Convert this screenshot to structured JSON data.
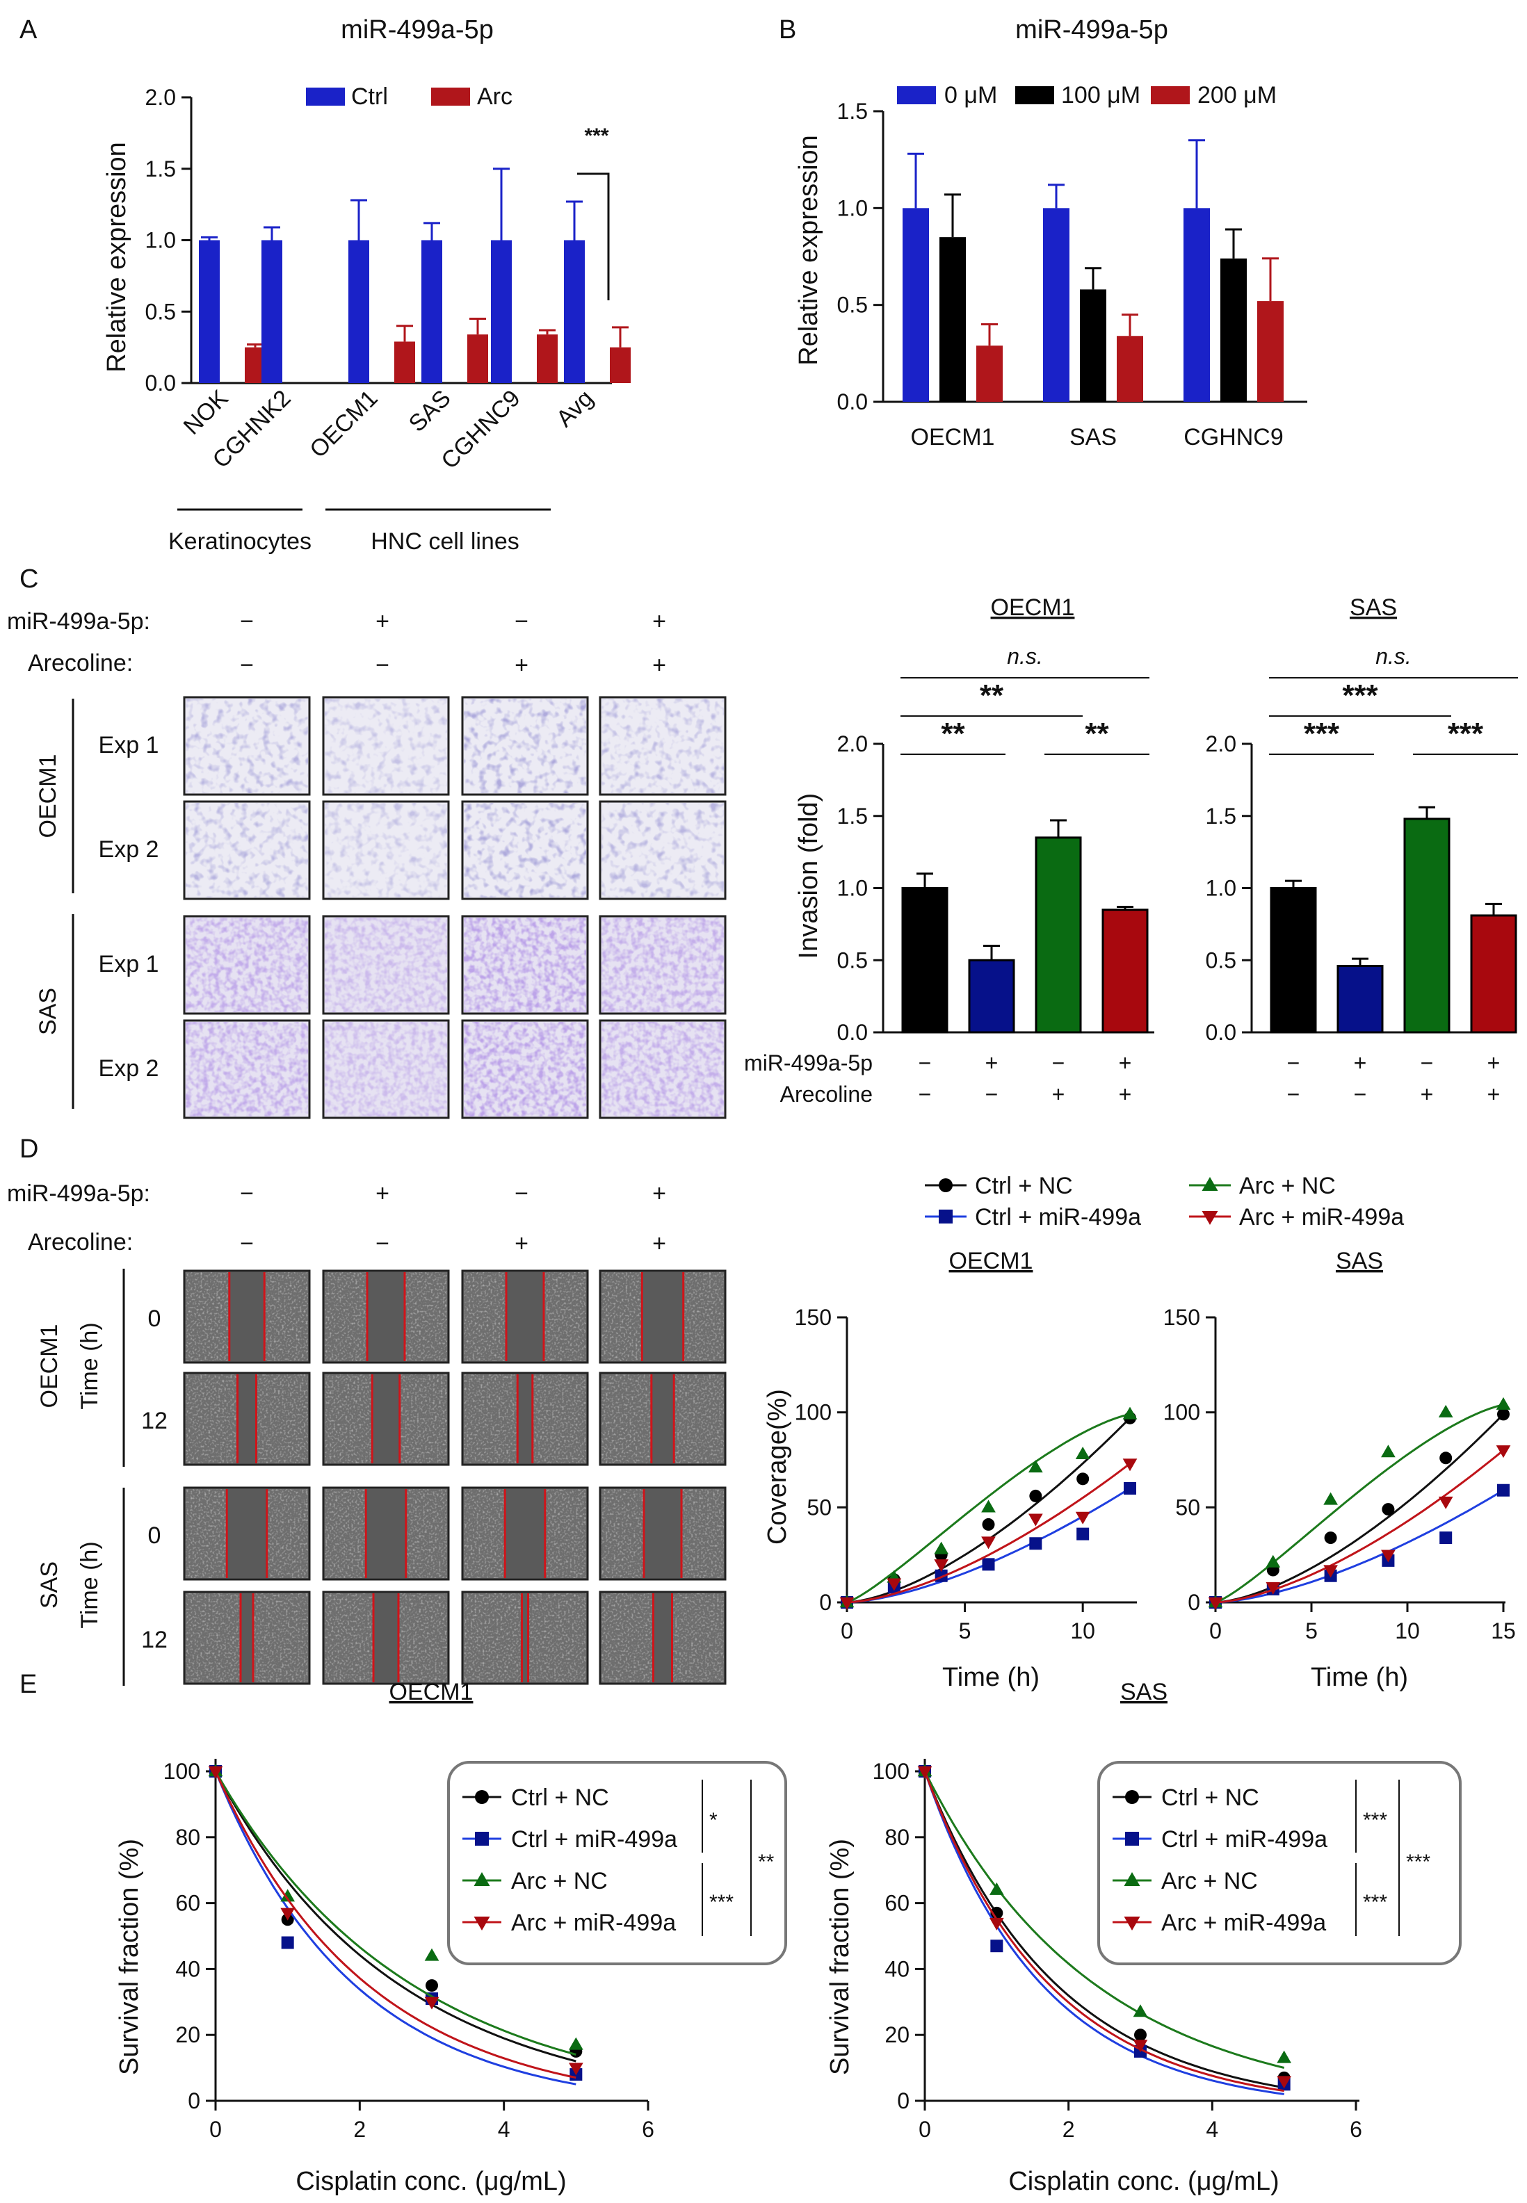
{
  "panels": {
    "A": "A",
    "B": "B",
    "C": "C",
    "D": "D",
    "E": "E"
  },
  "colors": {
    "blue": "#1a22c8",
    "red": "#b0161b",
    "black": "#000000",
    "green": "#0a6b12",
    "darkblue": "#06118a",
    "darkred": "#a8080e",
    "curve_black": "#111111",
    "curve_blue": "#1f3fe0",
    "curve_green": "#1c7a1c",
    "curve_red": "#c0141a"
  },
  "chart_data": [
    {
      "id": "A",
      "type": "bar",
      "title": "miR-499a-5p",
      "ylabel": "Relative expression",
      "ylim": [
        0,
        2.0
      ],
      "yticks": [
        "0.0",
        "0.5",
        "1.0",
        "1.5",
        "2.0"
      ],
      "categories": [
        "NOK",
        "CGHNK2",
        "OECM1",
        "SAS",
        "CGHNC9",
        "Avg"
      ],
      "series": [
        {
          "name": "Ctrl",
          "values": [
            1.0,
            1.0,
            1.0,
            1.0,
            1.0,
            1.0
          ],
          "errors": [
            0.02,
            0.09,
            0.28,
            0.12,
            0.5,
            0.27
          ]
        },
        {
          "name": "Arc",
          "values": [
            0.25,
            null,
            0.29,
            0.34,
            0.34,
            0.25
          ],
          "errors": [
            0.02,
            null,
            0.11,
            0.11,
            0.03,
            0.14
          ]
        }
      ],
      "groups": [
        {
          "label": "Keratinocytes"
        },
        {
          "label": "HNC cell lines"
        }
      ],
      "significance": "***"
    },
    {
      "id": "B",
      "type": "bar",
      "title": "miR-499a-5p",
      "ylabel": "Relative expression",
      "ylim": [
        0,
        1.5
      ],
      "yticks": [
        "0.0",
        "0.5",
        "1.0",
        "1.5"
      ],
      "categories": [
        "OECM1",
        "SAS",
        "CGHNC9"
      ],
      "series": [
        {
          "name": "0 μM",
          "values": [
            1.0,
            1.0,
            1.0
          ],
          "errors": [
            0.28,
            0.12,
            0.35
          ]
        },
        {
          "name": "100 μM",
          "values": [
            0.85,
            0.58,
            0.74
          ],
          "errors": [
            0.22,
            0.11,
            0.15
          ]
        },
        {
          "name": "200 μM",
          "values": [
            0.29,
            0.34,
            0.52
          ],
          "errors": [
            0.11,
            0.11,
            0.22
          ]
        }
      ]
    },
    {
      "id": "C-OECM1",
      "type": "bar",
      "title": "OECM1",
      "ylabel": "Invasion (fold)",
      "ylim": [
        0,
        2.0
      ],
      "yticks": [
        "0.0",
        "0.5",
        "1.0",
        "1.5",
        "2.0"
      ],
      "values": [
        1.0,
        0.5,
        1.35,
        0.85
      ],
      "errors": [
        0.1,
        0.1,
        0.12,
        0.02
      ],
      "row_labels": [
        "miR-499a-5p",
        "Arecoline"
      ],
      "mir": [
        "−",
        "+",
        "−",
        "+"
      ],
      "arc": [
        "−",
        "−",
        "+",
        "+"
      ],
      "sig": {
        "top": "n.s.",
        "mid": "**",
        "left": "**",
        "right": "**"
      }
    },
    {
      "id": "C-SAS",
      "type": "bar",
      "title": "SAS",
      "ylim": [
        0,
        2.0
      ],
      "yticks": [
        "0.0",
        "0.5",
        "1.0",
        "1.5",
        "2.0"
      ],
      "values": [
        1.0,
        0.46,
        1.48,
        0.81
      ],
      "errors": [
        0.05,
        0.05,
        0.08,
        0.08
      ],
      "mir": [
        "−",
        "+",
        "−",
        "+"
      ],
      "arc": [
        "−",
        "−",
        "+",
        "+"
      ],
      "sig": {
        "top": "n.s.",
        "mid": "***",
        "left": "***",
        "right": "***"
      }
    },
    {
      "id": "D-OECM1",
      "type": "line",
      "title": "OECM1",
      "xlabel": "Time (h)",
      "ylabel": "Coverage(%)",
      "xlim": [
        0,
        12
      ],
      "ylim": [
        0,
        150
      ],
      "xticks": [
        "0",
        "5",
        "10"
      ],
      "yticks": [
        "0",
        "50",
        "100",
        "150"
      ],
      "x": [
        0,
        2,
        4,
        6,
        8,
        10,
        12
      ],
      "series": [
        {
          "name": "Ctrl + NC",
          "values": [
            0,
            12,
            25,
            41,
            56,
            65,
            97
          ]
        },
        {
          "name": "Ctrl + miR-499a",
          "values": [
            0,
            8,
            14,
            20,
            31,
            36,
            60
          ]
        },
        {
          "name": "Arc + NC",
          "values": [
            0,
            13,
            28,
            50,
            71,
            78,
            99
          ]
        },
        {
          "name": "Arc + miR-499a",
          "values": [
            0,
            10,
            20,
            32,
            44,
            45,
            73
          ]
        }
      ]
    },
    {
      "id": "D-SAS",
      "type": "line",
      "title": "SAS",
      "xlabel": "Time (h)",
      "xlim": [
        0,
        15
      ],
      "ylim": [
        0,
        150
      ],
      "xticks": [
        "0",
        "5",
        "10",
        "15"
      ],
      "yticks": [
        "0",
        "50",
        "100",
        "150"
      ],
      "x": [
        0,
        3,
        6,
        9,
        12,
        15
      ],
      "series": [
        {
          "name": "Ctrl + NC",
          "values": [
            0,
            17,
            34,
            49,
            76,
            99
          ]
        },
        {
          "name": "Ctrl + miR-499a",
          "values": [
            0,
            7,
            14,
            22,
            34,
            59
          ]
        },
        {
          "name": "Arc + NC",
          "values": [
            0,
            21,
            54,
            79,
            100,
            104
          ]
        },
        {
          "name": "Arc + miR-499a",
          "values": [
            0,
            8,
            17,
            25,
            53,
            80
          ]
        }
      ]
    },
    {
      "id": "E-OECM1",
      "type": "scatter",
      "title": "OECM1",
      "xlabel": "Cisplatin conc. (μg/mL)",
      "ylabel": "Survival fraction (%)",
      "xlim": [
        0,
        6
      ],
      "ylim": [
        0,
        100
      ],
      "xticks": [
        "0",
        "2",
        "4",
        "6"
      ],
      "yticks": [
        "0",
        "20",
        "40",
        "60",
        "80",
        "100"
      ],
      "x": [
        0,
        1,
        3,
        5
      ],
      "series": [
        {
          "name": "Ctrl + NC",
          "values": [
            100,
            55,
            35,
            15
          ]
        },
        {
          "name": "Ctrl + miR-499a",
          "values": [
            100,
            48,
            31,
            8
          ]
        },
        {
          "name": "Arc + NC",
          "values": [
            100,
            62,
            44,
            17
          ]
        },
        {
          "name": "Arc + miR-499a",
          "values": [
            100,
            57,
            30,
            10
          ]
        }
      ],
      "sig": [
        "*",
        "**",
        "***"
      ]
    },
    {
      "id": "E-SAS",
      "type": "scatter",
      "title": "SAS",
      "xlabel": "Cisplatin conc. (μg/mL)",
      "ylabel": "Survival fraction (%)",
      "xlim": [
        0,
        6
      ],
      "ylim": [
        0,
        100
      ],
      "xticks": [
        "0",
        "2",
        "4",
        "6"
      ],
      "yticks": [
        "0",
        "20",
        "40",
        "60",
        "80",
        "100"
      ],
      "x": [
        0,
        1,
        3,
        5
      ],
      "series": [
        {
          "name": "Ctrl + NC",
          "values": [
            100,
            57,
            20,
            7
          ]
        },
        {
          "name": "Ctrl + miR-499a",
          "values": [
            100,
            47,
            15,
            5
          ]
        },
        {
          "name": "Arc + NC",
          "values": [
            100,
            64,
            27,
            13
          ]
        },
        {
          "name": "Arc + miR-499a",
          "values": [
            100,
            54,
            17,
            6
          ]
        }
      ],
      "sig": [
        "***",
        "***",
        "***"
      ]
    }
  ],
  "images": {
    "C_header": {
      "mir_label": "miR-499a-5p:",
      "arc_label": "Arecoline:",
      "mir": [
        "−",
        "+",
        "−",
        "+"
      ],
      "arc": [
        "−",
        "−",
        "+",
        "+"
      ]
    },
    "C_rows": {
      "groups": [
        "OECM1",
        "SAS"
      ],
      "rows": [
        "Exp 1",
        "Exp 2",
        "Exp 1",
        "Exp 2"
      ]
    },
    "D_header": {
      "mir_label": "miR-499a-5p:",
      "arc_label": "Arecoline:",
      "mir": [
        "−",
        "+",
        "−",
        "+"
      ],
      "arc": [
        "−",
        "−",
        "+",
        "+"
      ]
    },
    "D_rows": {
      "groups": [
        "OECM1",
        "SAS"
      ],
      "time_label": "Time (h)",
      "rows": [
        "0",
        "12",
        "0",
        "12"
      ]
    }
  }
}
